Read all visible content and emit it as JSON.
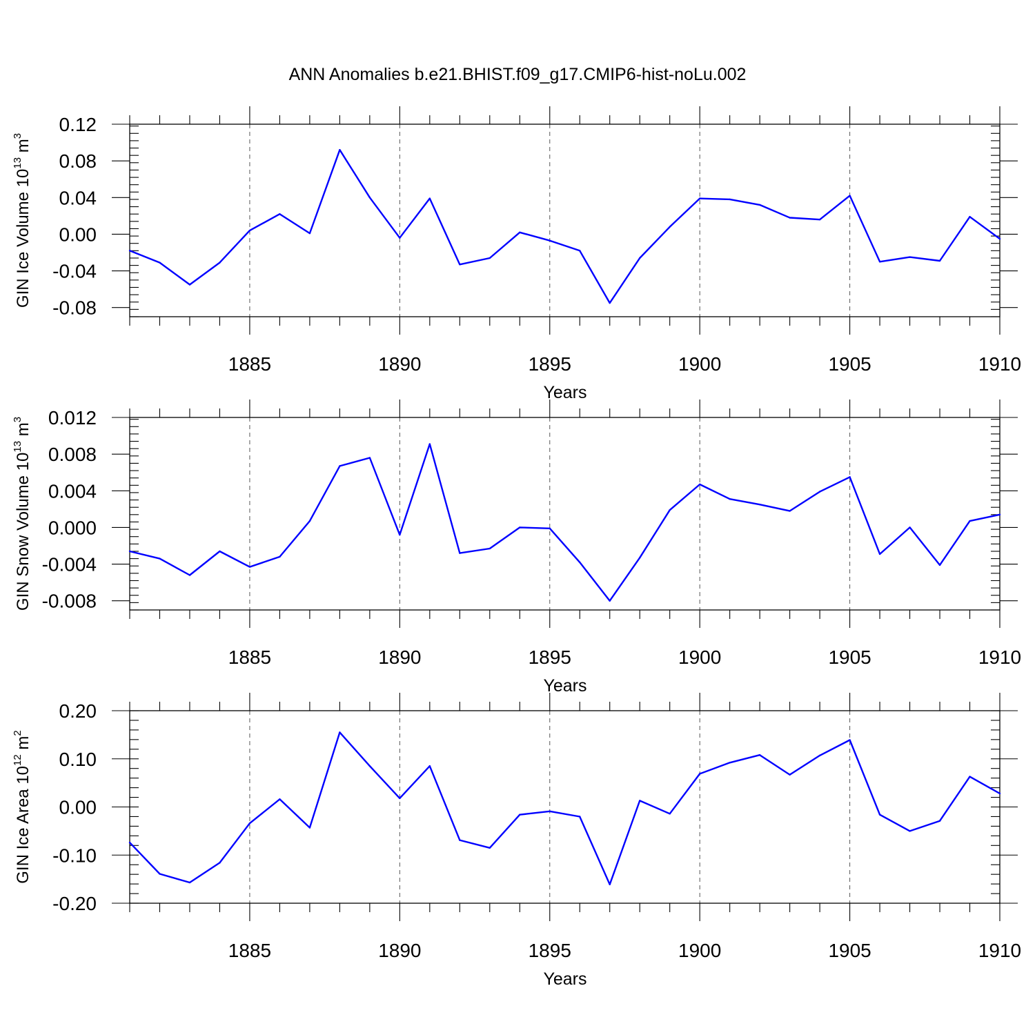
{
  "colors": {
    "line": "#0000ff"
  },
  "chart_data": [
    {
      "type": "line",
      "title": "ANN Anomalies b.e21.BHIST.f09_g17.CMIP6-hist-noLu.002",
      "ylabel": {
        "text": "GIN Ice Volume 10",
        "exp": "13",
        "unit": " m",
        "unit_exp": "3"
      },
      "xlabel": "Years",
      "ylim": [
        -0.09,
        0.12
      ],
      "xlim": [
        1881,
        1910
      ],
      "yticks": [
        -0.08,
        -0.04,
        0.0,
        0.04,
        0.08,
        0.12
      ],
      "ytick_labels": [
        "-0.08",
        "-0.04",
        "0.00",
        "0.04",
        "0.08",
        "0.12"
      ],
      "yminor": 0.008,
      "xticks": [
        1885,
        1890,
        1895,
        1900,
        1905,
        1910
      ],
      "xtick_labels": [
        "1885",
        "1890",
        "1895",
        "1900",
        "1905",
        "1910"
      ],
      "grid_x": [
        1885,
        1890,
        1895,
        1900,
        1905
      ],
      "x": [
        1881,
        1882,
        1883,
        1884,
        1885,
        1886,
        1887,
        1888,
        1889,
        1890,
        1891,
        1892,
        1893,
        1894,
        1895,
        1896,
        1897,
        1898,
        1899,
        1900,
        1901,
        1902,
        1903,
        1904,
        1905,
        1906,
        1907,
        1908,
        1909,
        1910
      ],
      "values": [
        -0.018,
        -0.031,
        -0.055,
        -0.031,
        0.004,
        0.022,
        0.001,
        0.092,
        0.04,
        -0.004,
        0.039,
        -0.033,
        -0.026,
        0.002,
        -0.007,
        -0.018,
        -0.075,
        -0.026,
        0.008,
        0.039,
        0.038,
        0.032,
        0.018,
        0.016,
        0.042,
        -0.03,
        -0.025,
        -0.029,
        0.019,
        -0.005
      ]
    },
    {
      "type": "line",
      "title": "",
      "ylabel": {
        "text": "GIN Snow Volume 10",
        "exp": "13",
        "unit": " m",
        "unit_exp": "3"
      },
      "xlabel": "Years",
      "ylim": [
        -0.009,
        0.012
      ],
      "xlim": [
        1881,
        1910
      ],
      "yticks": [
        -0.008,
        -0.004,
        0.0,
        0.004,
        0.008,
        0.012
      ],
      "ytick_labels": [
        "-0.008",
        "-0.004",
        "0.000",
        "0.004",
        "0.008",
        "0.012"
      ],
      "yminor": 0.0008,
      "xticks": [
        1885,
        1890,
        1895,
        1900,
        1905,
        1910
      ],
      "xtick_labels": [
        "1885",
        "1890",
        "1895",
        "1900",
        "1905",
        "1910"
      ],
      "grid_x": [
        1885,
        1890,
        1895,
        1900,
        1905
      ],
      "x": [
        1881,
        1882,
        1883,
        1884,
        1885,
        1886,
        1887,
        1888,
        1889,
        1890,
        1891,
        1892,
        1893,
        1894,
        1895,
        1896,
        1897,
        1898,
        1899,
        1900,
        1901,
        1902,
        1903,
        1904,
        1905,
        1906,
        1907,
        1908,
        1909,
        1910
      ],
      "values": [
        -0.0026,
        -0.0034,
        -0.0052,
        -0.0026,
        -0.0043,
        -0.0032,
        0.0007,
        0.0067,
        0.0076,
        -0.0008,
        0.0091,
        -0.0028,
        -0.0023,
        0.0,
        -0.0001,
        -0.0038,
        -0.008,
        -0.0033,
        0.0019,
        0.0047,
        0.0031,
        0.0025,
        0.0018,
        0.0039,
        0.0055,
        -0.0029,
        0.0,
        -0.0041,
        0.0007,
        0.0014
      ]
    },
    {
      "type": "line",
      "title": "",
      "ylabel": {
        "text": "GIN Ice Area 10",
        "exp": "12",
        "unit": " m",
        "unit_exp": "2"
      },
      "xlabel": "Years",
      "ylim": [
        -0.2,
        0.2
      ],
      "xlim": [
        1881,
        1910
      ],
      "yticks": [
        -0.2,
        -0.1,
        0.0,
        0.1,
        0.2
      ],
      "ytick_labels": [
        "-0.20",
        "-0.10",
        "0.00",
        "0.10",
        "0.20"
      ],
      "yminor": 0.02,
      "xticks": [
        1885,
        1890,
        1895,
        1900,
        1905,
        1910
      ],
      "xtick_labels": [
        "1885",
        "1890",
        "1895",
        "1900",
        "1905",
        "1910"
      ],
      "grid_x": [
        1885,
        1890,
        1895,
        1900,
        1905
      ],
      "x": [
        1881,
        1882,
        1883,
        1884,
        1885,
        1886,
        1887,
        1888,
        1889,
        1890,
        1891,
        1892,
        1893,
        1894,
        1895,
        1896,
        1897,
        1898,
        1899,
        1900,
        1901,
        1902,
        1903,
        1904,
        1905,
        1906,
        1907,
        1908,
        1909,
        1910
      ],
      "values": [
        -0.074,
        -0.139,
        -0.157,
        -0.116,
        -0.034,
        0.016,
        -0.043,
        0.155,
        0.085,
        0.018,
        0.085,
        -0.069,
        -0.085,
        -0.016,
        -0.009,
        -0.02,
        -0.161,
        0.013,
        -0.014,
        0.069,
        0.092,
        0.108,
        0.067,
        0.107,
        0.139,
        -0.016,
        -0.05,
        -0.029,
        0.063,
        0.028
      ]
    }
  ]
}
